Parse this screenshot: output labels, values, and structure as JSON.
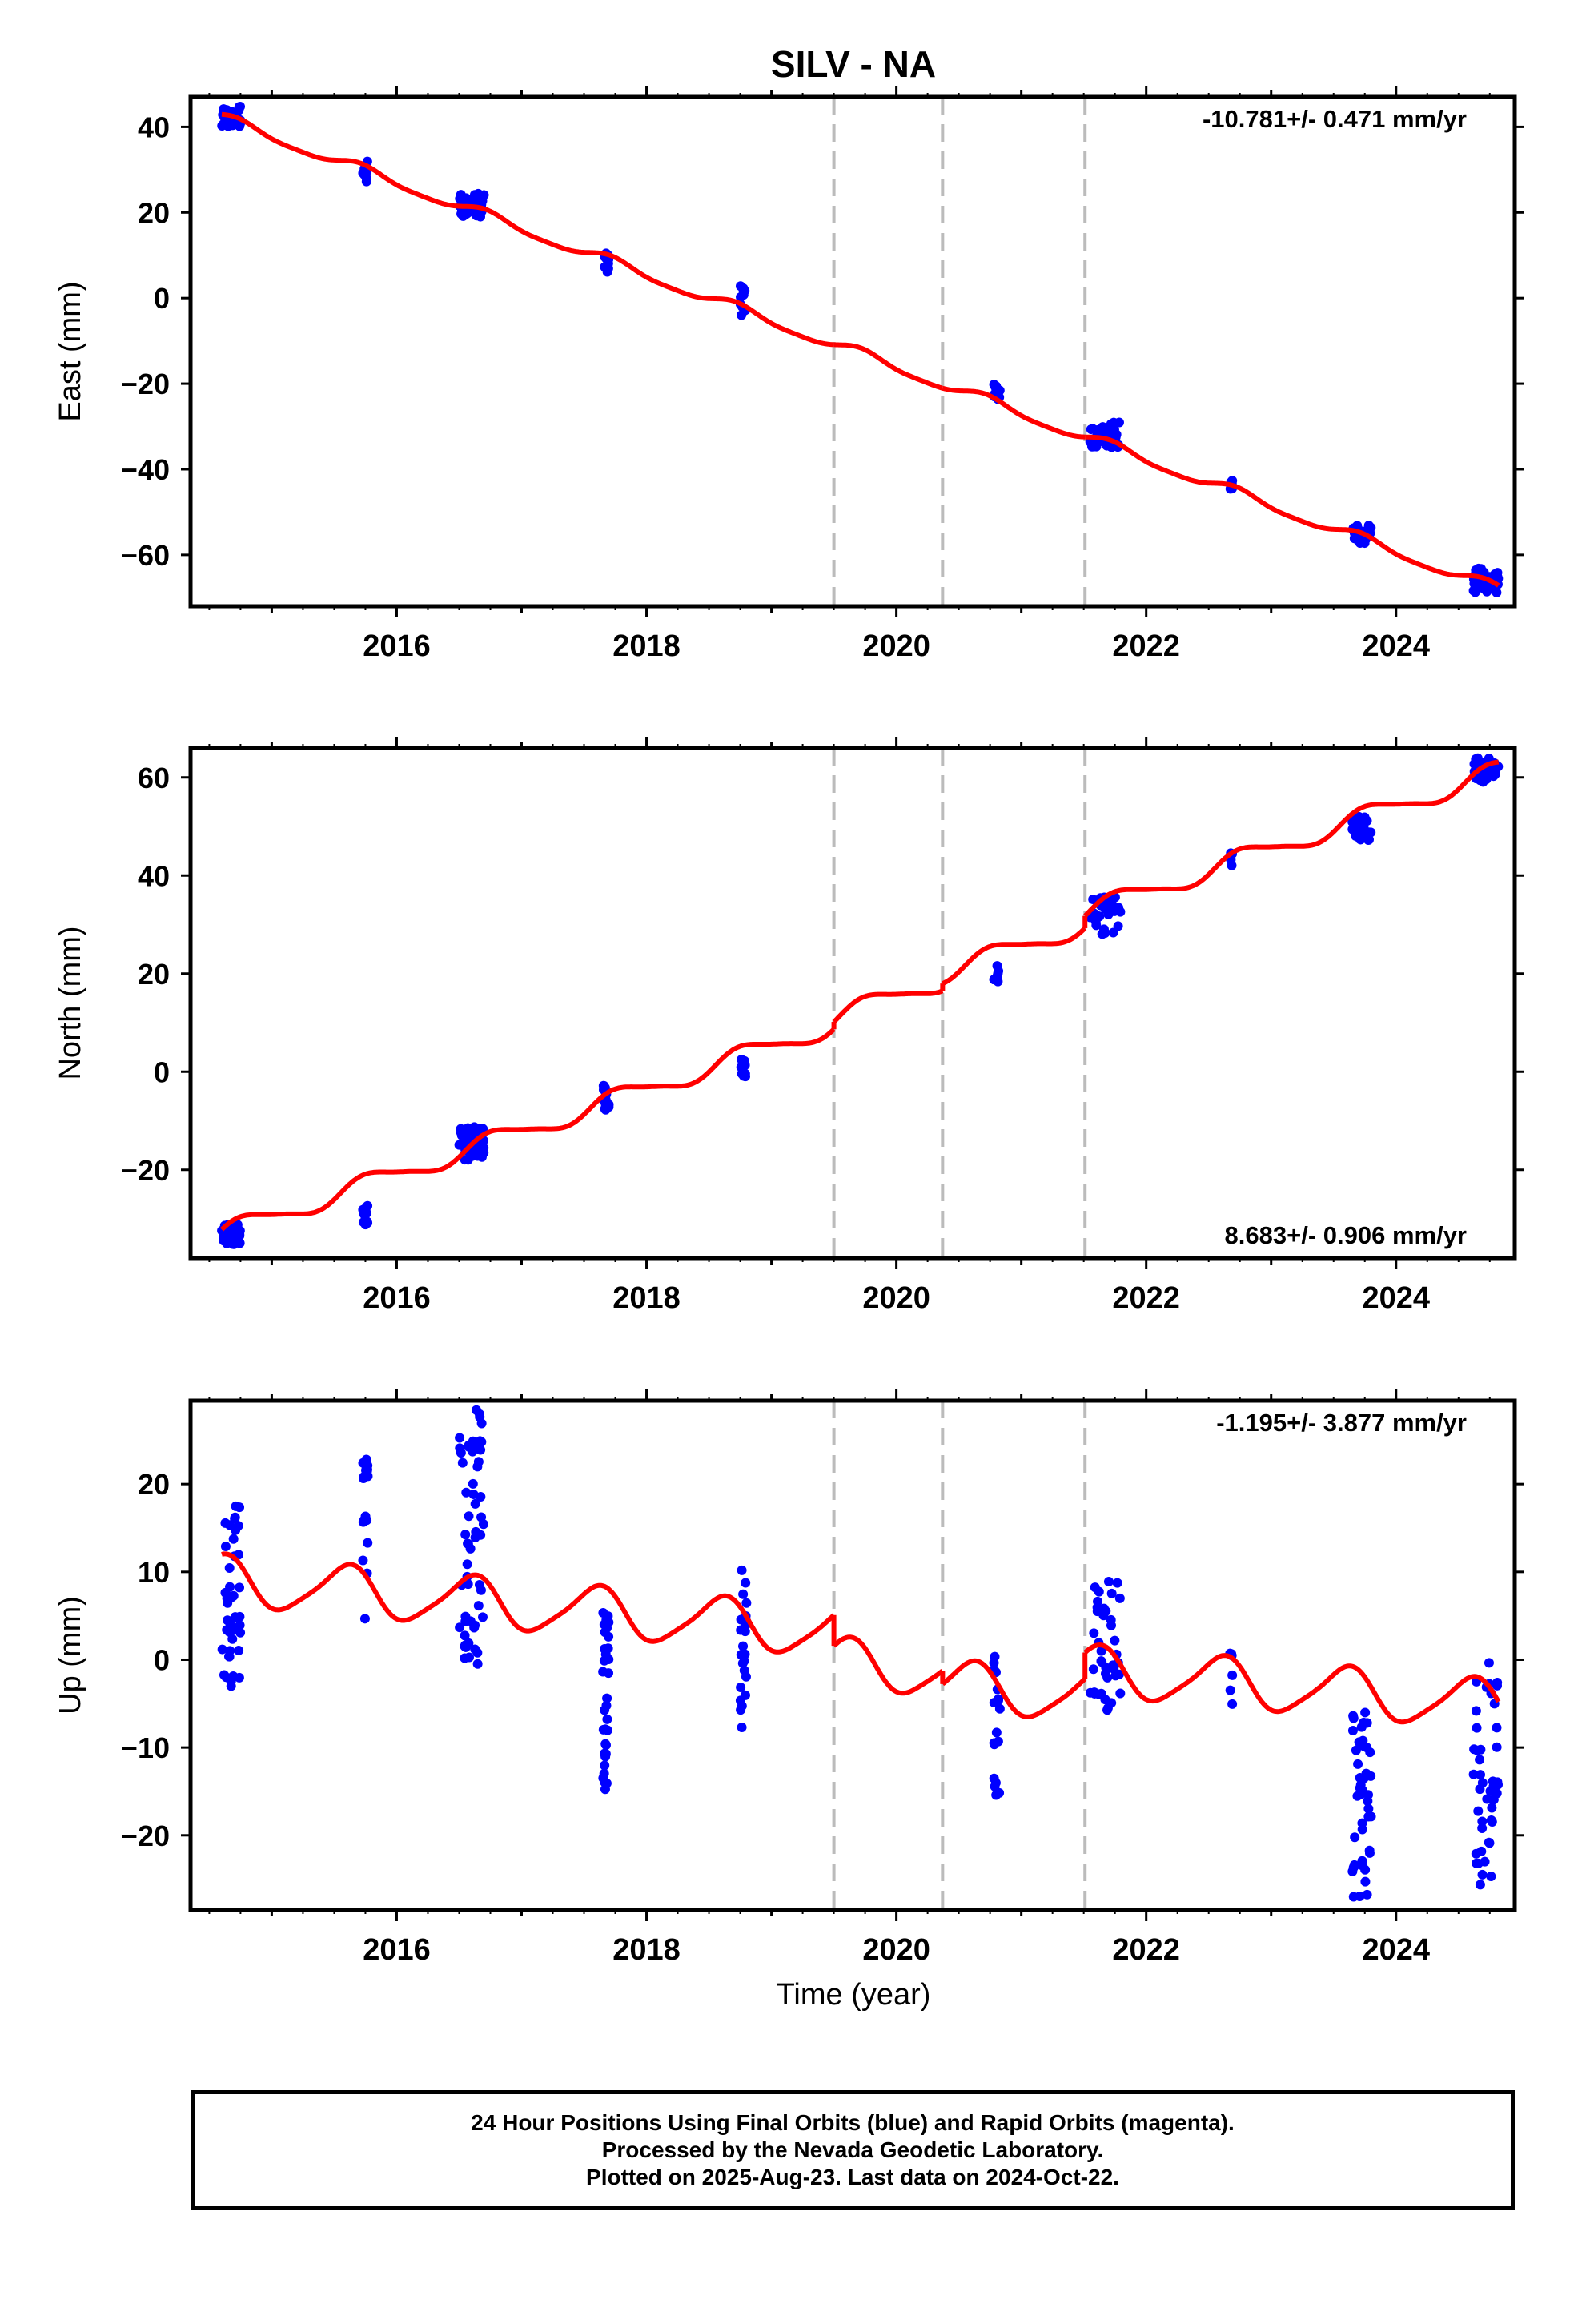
{
  "chart_data": {
    "type": "scatter",
    "title": "SILV - NA",
    "x_ticks": [
      "2016",
      "2018",
      "2020",
      "2022",
      "2024"
    ],
    "xlabel": "Time (year)",
    "xlim": [
      2014.35,
      2024.95
    ],
    "breaks": [
      2019.5,
      2020.37,
      2021.51
    ],
    "colors": {
      "points": "#0000ff",
      "model": "#ff0000",
      "breaks": "#bbbbbb"
    },
    "panels": [
      {
        "name": "east",
        "ylabel": "East (mm)",
        "ylim": [
          -72,
          47
        ],
        "yticks": [
          "40",
          "20",
          "0",
          "−20",
          "−40",
          "−60"
        ],
        "ytick_values": [
          40,
          20,
          0,
          -20,
          -40,
          -60
        ],
        "rate_label": "-10.781+/- 0.471 mm/yr",
        "rate_position": "top-right",
        "model_params": {
          "t0": 2014.6,
          "offset": 42.0,
          "rate": -10.781,
          "amp1": 1.2,
          "phase1": 0.8,
          "amp2": 0.3,
          "phase2": 0.2,
          "steps": [
            0,
            0,
            0
          ]
        },
        "clusters": [
          {
            "t": 2014.6,
            "t_end": 2014.75,
            "y_min": 40,
            "y_max": 45,
            "n": 40
          },
          {
            "t": 2015.73,
            "t_end": 2015.77,
            "y_min": 27,
            "y_max": 32,
            "n": 12
          },
          {
            "t": 2016.5,
            "t_end": 2016.7,
            "y_min": 19,
            "y_max": 24.5,
            "n": 40
          },
          {
            "t": 2017.65,
            "t_end": 2017.7,
            "y_min": 6,
            "y_max": 11,
            "n": 15
          },
          {
            "t": 2018.75,
            "t_end": 2018.8,
            "y_min": -4,
            "y_max": 3,
            "n": 12
          },
          {
            "t": 2020.78,
            "t_end": 2020.83,
            "y_min": -24,
            "y_max": -20,
            "n": 12
          },
          {
            "t": 2021.55,
            "t_end": 2021.8,
            "y_min": -35,
            "y_max": -29,
            "n": 35
          },
          {
            "t": 2022.67,
            "t_end": 2022.69,
            "y_min": -45,
            "y_max": -42,
            "n": 5
          },
          {
            "t": 2023.65,
            "t_end": 2023.8,
            "y_min": -57.5,
            "y_max": -53,
            "n": 30
          },
          {
            "t": 2024.62,
            "t_end": 2024.82,
            "y_min": -69,
            "y_max": -63,
            "n": 40
          }
        ]
      },
      {
        "name": "north",
        "ylabel": "North (mm)",
        "ylim": [
          -38,
          66
        ],
        "yticks": [
          "60",
          "40",
          "20",
          "0",
          "−20"
        ],
        "ytick_values": [
          60,
          40,
          20,
          0,
          -20
        ],
        "rate_label": "8.683+/- 0.906 mm/yr",
        "rate_position": "bottom-right",
        "model_params": {
          "t0": 2014.6,
          "offset": -33.0,
          "rate": 8.683,
          "amp1": 2.0,
          "phase1": 0.3,
          "amp2": 0.4,
          "phase2": 0.6,
          "steps": [
            1.5,
            1.5,
            2.5
          ]
        },
        "clusters": [
          {
            "t": 2014.6,
            "t_end": 2014.75,
            "y_min": -36,
            "y_max": -31,
            "n": 40
          },
          {
            "t": 2015.73,
            "t_end": 2015.77,
            "y_min": -32,
            "y_max": -27,
            "n": 10
          },
          {
            "t": 2016.5,
            "t_end": 2016.7,
            "y_min": -18,
            "y_max": -11,
            "n": 40
          },
          {
            "t": 2017.65,
            "t_end": 2017.7,
            "y_min": -8,
            "y_max": -2,
            "n": 15
          },
          {
            "t": 2018.75,
            "t_end": 2018.8,
            "y_min": -1,
            "y_max": 3,
            "n": 12
          },
          {
            "t": 2020.78,
            "t_end": 2020.82,
            "y_min": 18,
            "y_max": 23,
            "n": 8
          },
          {
            "t": 2021.55,
            "t_end": 2021.8,
            "y_min": 28,
            "y_max": 36,
            "n": 35
          },
          {
            "t": 2022.67,
            "t_end": 2022.69,
            "y_min": 42,
            "y_max": 45,
            "n": 5
          },
          {
            "t": 2023.65,
            "t_end": 2023.8,
            "y_min": 47,
            "y_max": 52,
            "n": 30
          },
          {
            "t": 2024.62,
            "t_end": 2024.82,
            "y_min": 59,
            "y_max": 64,
            "n": 40
          }
        ]
      },
      {
        "name": "up",
        "ylabel": "Up (mm)",
        "ylim": [
          -28.5,
          29.5
        ],
        "yticks": [
          "20",
          "10",
          "0",
          "−10",
          "−20"
        ],
        "ytick_values": [
          20,
          10,
          0,
          -10,
          -20
        ],
        "rate_label": "-1.195+/- 3.877 mm/yr",
        "rate_position": "top-right",
        "model_params": {
          "t0": 2014.6,
          "offset": 9.0,
          "rate": -1.195,
          "amp1": 2.8,
          "phase1": 1.6,
          "amp2": 0.5,
          "phase2": 0.4,
          "steps": [
            -3.5,
            -1.5,
            3.0
          ]
        },
        "clusters": [
          {
            "t": 2014.6,
            "t_end": 2014.75,
            "y_min": -3,
            "y_max": 17.5,
            "n": 45
          },
          {
            "t": 2015.73,
            "t_end": 2015.77,
            "y_min": 4,
            "y_max": 23,
            "n": 18
          },
          {
            "t": 2016.5,
            "t_end": 2016.7,
            "y_min": -0.5,
            "y_max": 28.5,
            "n": 60
          },
          {
            "t": 2017.65,
            "t_end": 2017.7,
            "y_min": -15,
            "y_max": 5.5,
            "n": 35
          },
          {
            "t": 2018.75,
            "t_end": 2018.8,
            "y_min": -9,
            "y_max": 10.5,
            "n": 25
          },
          {
            "t": 2020.78,
            "t_end": 2020.83,
            "y_min": -15.5,
            "y_max": 1,
            "n": 18
          },
          {
            "t": 2021.55,
            "t_end": 2021.8,
            "y_min": -6,
            "y_max": 9.5,
            "n": 40
          },
          {
            "t": 2022.67,
            "t_end": 2022.69,
            "y_min": -7.5,
            "y_max": 5.5,
            "n": 6
          },
          {
            "t": 2023.65,
            "t_end": 2023.8,
            "y_min": -27,
            "y_max": -6,
            "n": 45
          },
          {
            "t": 2024.62,
            "t_end": 2024.82,
            "y_min": -27,
            "y_max": 0.5,
            "n": 45
          }
        ]
      }
    ]
  },
  "footer": {
    "line1": "24 Hour Positions Using Final Orbits (blue) and Rapid Orbits (magenta).",
    "line2": "Processed by the Nevada Geodetic Laboratory.",
    "line3": "Plotted on 2025-Aug-23. Last data on 2024-Oct-22."
  }
}
